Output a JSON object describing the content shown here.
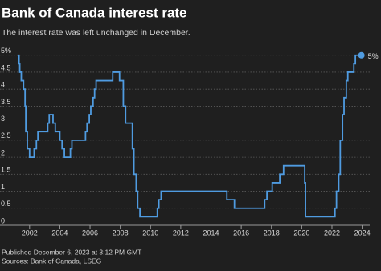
{
  "chart_data": {
    "type": "step-line",
    "title": "Bank of Canada interest rate",
    "subtitle": "The interest rate was left unchanged in December.",
    "footer": [
      "Published December 6, 2023 at 3:12 PM GMT",
      "Sources: Bank of Canada, LSEG"
    ],
    "end_label": "5%",
    "xlim": [
      2001,
      2024.5
    ],
    "xticks": [
      2002,
      2004,
      2006,
      2008,
      2010,
      2012,
      2014,
      2016,
      2018,
      2020,
      2022,
      2024
    ],
    "ylim": [
      0,
      5.3
    ],
    "yticks": [
      0,
      0.5,
      1,
      1.5,
      2,
      2.5,
      3,
      3.5,
      4,
      4.5,
      {
        "value": 5,
        "label": "5%"
      }
    ],
    "grid": true,
    "series": [
      {
        "color": "#4f9be0",
        "x": [
          2001.2,
          2001.3,
          2001.35,
          2001.45,
          2001.6,
          2001.7,
          2001.75,
          2001.85,
          2002.0,
          2002.3,
          2002.45,
          2002.55,
          2003.2,
          2003.3,
          2003.55,
          2003.7,
          2004.0,
          2004.15,
          2004.3,
          2004.7,
          2004.8,
          2005.7,
          2005.8,
          2005.95,
          2006.05,
          2006.2,
          2006.3,
          2006.4,
          2007.5,
          2007.95,
          2008.2,
          2008.35,
          2008.8,
          2008.9,
          2009.05,
          2009.15,
          2009.3,
          2010.45,
          2010.55,
          2010.7,
          2015.05,
          2015.55,
          2017.55,
          2017.7,
          2018.05,
          2018.55,
          2018.8,
          2020.2,
          2020.25,
          2022.2,
          2022.3,
          2022.45,
          2022.55,
          2022.7,
          2022.8,
          2022.95,
          2023.05,
          2023.45,
          2023.55,
          2023.95
        ],
        "values": [
          5.0,
          4.75,
          4.5,
          4.25,
          4.0,
          3.5,
          2.75,
          2.25,
          2.0,
          2.25,
          2.5,
          2.75,
          3.0,
          3.25,
          3.0,
          2.75,
          2.5,
          2.25,
          2.0,
          2.25,
          2.5,
          2.75,
          3.0,
          3.25,
          3.5,
          3.75,
          4.0,
          4.25,
          4.5,
          4.25,
          3.5,
          3.0,
          2.25,
          1.5,
          1.0,
          0.5,
          0.25,
          0.5,
          0.75,
          1.0,
          0.75,
          0.5,
          0.75,
          1.0,
          1.25,
          1.5,
          1.75,
          1.25,
          0.25,
          0.5,
          1.0,
          1.5,
          2.5,
          3.25,
          3.75,
          4.25,
          4.5,
          4.75,
          5.0,
          5.0
        ]
      }
    ]
  }
}
